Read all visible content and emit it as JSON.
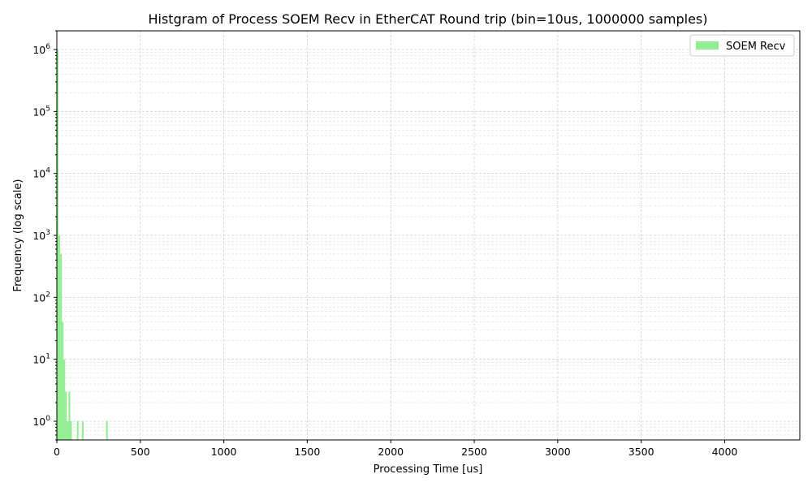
{
  "chart_data": {
    "type": "bar",
    "title": "Histgram of Process SOEM Recv in EtherCAT Round trip (bin=10us, 1000000 samples)",
    "xlabel": "Processing Time [us]",
    "ylabel": "Frequency (log scale)",
    "xlim": [
      0,
      4450
    ],
    "ylim": [
      0.5,
      2000000
    ],
    "xscale": "linear",
    "yscale": "log",
    "grid": true,
    "legend_position": "top-right",
    "bin_width": 10,
    "x_ticks": [
      0,
      500,
      1000,
      1500,
      2000,
      2500,
      3000,
      3500,
      4000
    ],
    "x_tick_labels": [
      "0",
      "500",
      "1000",
      "1500",
      "2000",
      "2500",
      "3000",
      "3500",
      "4000"
    ],
    "y_tick_exponents": [
      0,
      1,
      2,
      3,
      4,
      5,
      6
    ],
    "series": [
      {
        "name": "SOEM Recv",
        "color": "#90ee90",
        "bins": [
          {
            "x": 0,
            "value": 998000
          },
          {
            "x": 10,
            "value": 1000
          },
          {
            "x": 20,
            "value": 500
          },
          {
            "x": 30,
            "value": 40
          },
          {
            "x": 40,
            "value": 10
          },
          {
            "x": 50,
            "value": 3
          },
          {
            "x": 60,
            "value": 1
          },
          {
            "x": 70,
            "value": 3
          },
          {
            "x": 80,
            "value": 1
          },
          {
            "x": 120,
            "value": 1
          },
          {
            "x": 150,
            "value": 1
          },
          {
            "x": 295,
            "value": 1
          }
        ]
      }
    ]
  }
}
